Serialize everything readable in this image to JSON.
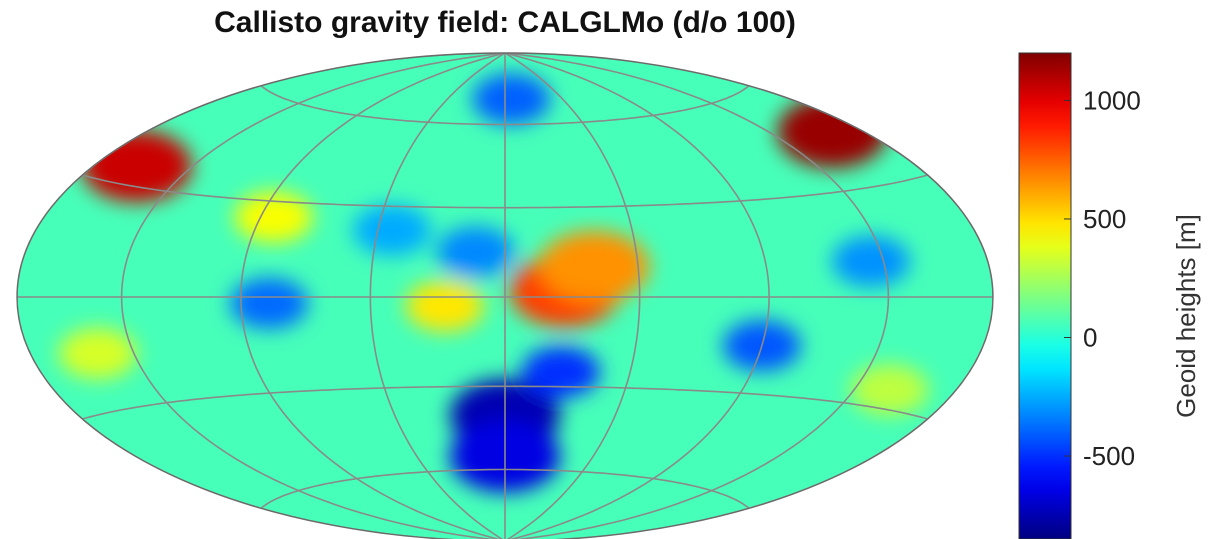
{
  "chart_data": {
    "type": "heatmap",
    "title": "Callisto gravity field: CALGLMo (d/o 100)",
    "projection": "Hammer-Aitoff (global map)",
    "colormap": "jet",
    "grid": true,
    "grid_lines": {
      "meridians_deg": [
        -180,
        -135,
        -90,
        -45,
        0,
        45,
        90,
        135,
        180
      ],
      "parallels_deg": [
        -60,
        -30,
        0,
        30,
        60
      ]
    },
    "colorbar": {
      "label": "Geoid heights [m]",
      "range": [
        -850,
        1200
      ],
      "ticks": [
        -500,
        0,
        500,
        1000
      ],
      "tick_labels": [
        "-500",
        "0",
        "500",
        "1000"
      ],
      "placement": "right"
    },
    "features": [
      {
        "lon": -160,
        "lat": 35,
        "value": 1050
      },
      {
        "lon": 165,
        "lat": 45,
        "value": 1150
      },
      {
        "lon": 20,
        "lat": 2,
        "value": 820
      },
      {
        "lon": 30,
        "lat": 10,
        "value": 650
      },
      {
        "lon": -20,
        "lat": -3,
        "value": 480
      },
      {
        "lon": 0,
        "lat": -40,
        "value": -750
      },
      {
        "lon": 0,
        "lat": -55,
        "value": -650
      },
      {
        "lon": 20,
        "lat": -25,
        "value": -500
      },
      {
        "lon": -80,
        "lat": -2,
        "value": -380
      },
      {
        "lon": 90,
        "lat": -15,
        "value": -420
      },
      {
        "lon": -85,
        "lat": 25,
        "value": 420
      },
      {
        "lon": 130,
        "lat": 10,
        "value": -300
      },
      {
        "lon": 5,
        "lat": 70,
        "value": -400
      },
      {
        "lon": -40,
        "lat": 22,
        "value": -250
      },
      {
        "lon": -10,
        "lat": 15,
        "value": -320
      },
      {
        "lon": -150,
        "lat": -15,
        "value": 350
      },
      {
        "lon": 150,
        "lat": -25,
        "value": 300
      }
    ]
  }
}
